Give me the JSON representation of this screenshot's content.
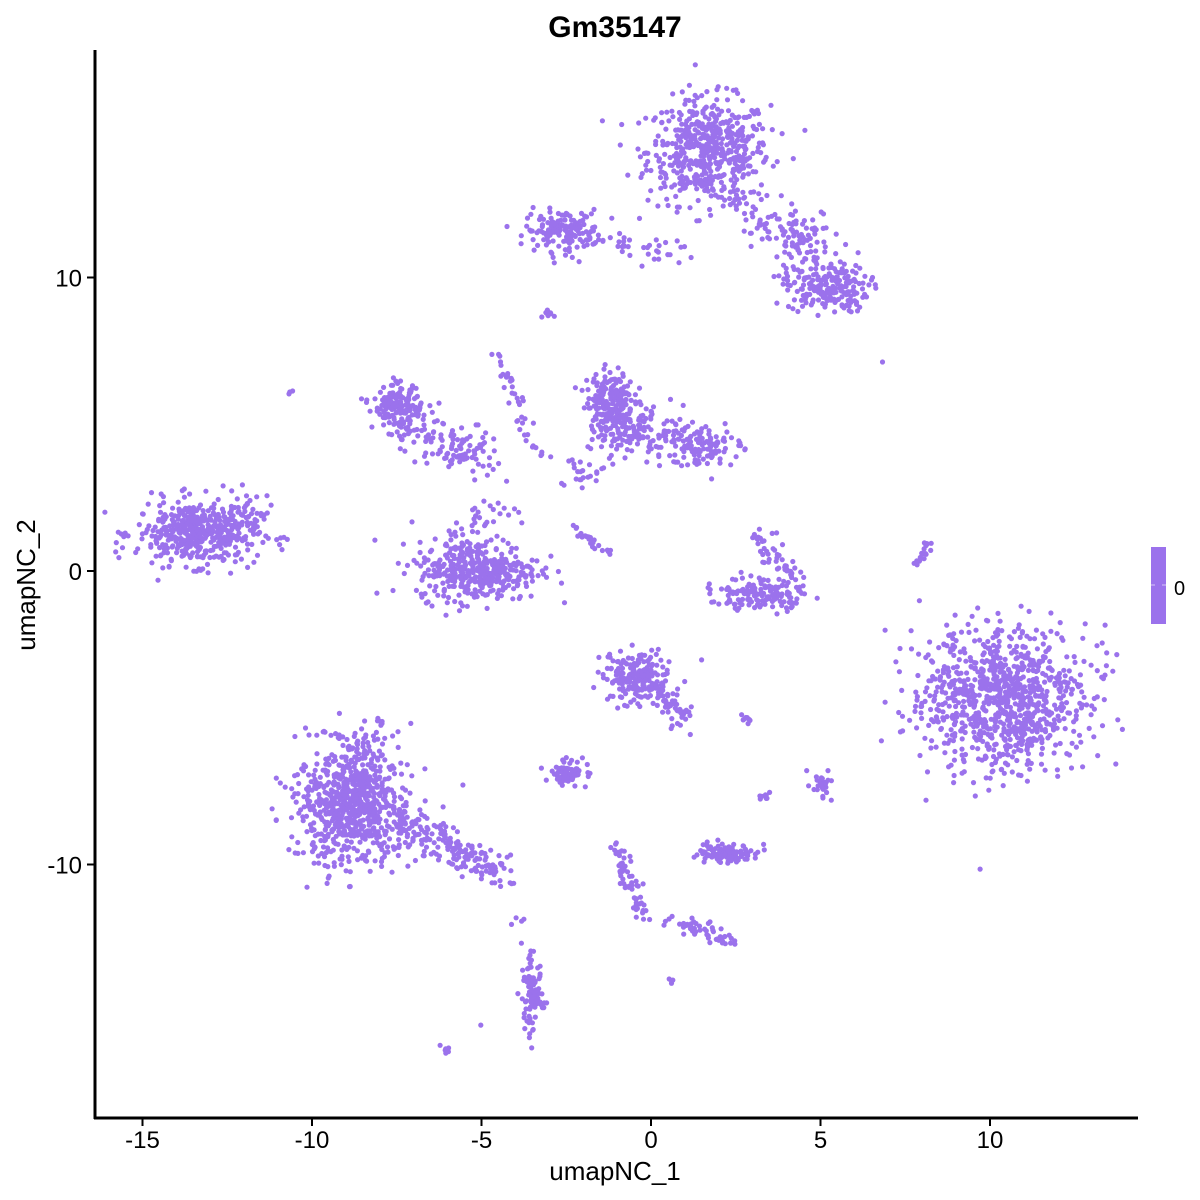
{
  "chart_data": {
    "type": "scatter",
    "title": "Gm35147",
    "xlabel": "umapNC_1",
    "ylabel": "umapNC_2",
    "xlim": [
      -16.3,
      14.5
    ],
    "ylim": [
      -18.3,
      17.9
    ],
    "x_ticks": [
      -15,
      -10,
      -5,
      0,
      5,
      10
    ],
    "y_ticks": [
      -10,
      0,
      10
    ],
    "x_tick_labels": [
      "-15",
      "-10",
      "-5",
      "0",
      "5",
      "10"
    ],
    "y_tick_labels": [
      "-10",
      "0",
      "10"
    ],
    "grid": false,
    "point_color": "#9B72EC",
    "legend": {
      "placement": "right",
      "type": "colorbar",
      "labels": [
        "0"
      ],
      "color": "#9B72EC"
    },
    "clusters": [
      {
        "center": [
          1.7,
          14.3
        ],
        "sd": [
          0.9,
          0.9
        ],
        "n": 550
      },
      {
        "from": [
          2.6,
          12.6
        ],
        "to": [
          5.4,
          9.8
        ],
        "sd": 0.45,
        "n": 120
      },
      {
        "center": [
          5.2,
          9.6
        ],
        "sd": [
          0.6,
          0.4
        ],
        "n": 160
      },
      {
        "center": [
          4.6,
          11.5
        ],
        "sd": [
          0.5,
          0.4
        ],
        "n": 40
      },
      {
        "center": [
          -2.6,
          11.6
        ],
        "sd": [
          0.55,
          0.35
        ],
        "n": 150
      },
      {
        "from": [
          -2.0,
          11.3
        ],
        "to": [
          0.9,
          10.8
        ],
        "sd": 0.2,
        "n": 40
      },
      {
        "center": [
          -13.4,
          1.3
        ],
        "sd": [
          0.9,
          0.55
        ],
        "n": 450
      },
      {
        "from": [
          -12.5,
          0.5
        ],
        "to": [
          -11.6,
          2.8
        ],
        "sd": 0.3,
        "n": 40
      },
      {
        "center": [
          -5.1,
          0.0
        ],
        "sd": [
          0.9,
          0.5
        ],
        "n": 380
      },
      {
        "from": [
          -6.2,
          1.0
        ],
        "to": [
          -4.0,
          2.0
        ],
        "sd": 0.4,
        "n": 50
      },
      {
        "center": [
          -7.5,
          5.6
        ],
        "sd": [
          0.35,
          0.35
        ],
        "n": 150
      },
      {
        "from": [
          -7.3,
          5.0
        ],
        "to": [
          -5.0,
          3.8
        ],
        "sd": 0.45,
        "n": 130
      },
      {
        "from": [
          -4.6,
          7.5
        ],
        "to": [
          -3.3,
          3.8
        ],
        "sd": 0.12,
        "n": 40
      },
      {
        "center": [
          -1.2,
          5.8
        ],
        "sd": [
          0.35,
          0.5
        ],
        "n": 200
      },
      {
        "from": [
          -1.0,
          5.0
        ],
        "to": [
          2.3,
          4.1
        ],
        "sd": 0.4,
        "n": 220
      },
      {
        "from": [
          -2.2,
          3.0
        ],
        "to": [
          -0.8,
          5.0
        ],
        "sd": 0.3,
        "n": 50
      },
      {
        "from": [
          -2.3,
          1.5
        ],
        "to": [
          -1.2,
          0.6
        ],
        "sd": 0.08,
        "n": 25
      },
      {
        "center": [
          3.2,
          -0.8
        ],
        "sd": [
          0.7,
          0.25
        ],
        "n": 150
      },
      {
        "from": [
          3.0,
          1.3
        ],
        "to": [
          4.2,
          -0.3
        ],
        "sd": 0.2,
        "n": 50
      },
      {
        "center": [
          10.4,
          -4.4
        ],
        "sd": [
          1.2,
          1.2
        ],
        "n": 950
      },
      {
        "center": [
          -8.8,
          -8.1
        ],
        "sd": [
          0.85,
          1.0
        ],
        "n": 650
      },
      {
        "from": [
          -8.8,
          -5.5
        ],
        "to": [
          -8.5,
          -8.0
        ],
        "sd": 0.5,
        "n": 120
      },
      {
        "from": [
          -7.5,
          -8.5
        ],
        "to": [
          -4.2,
          -10.4
        ],
        "sd": 0.3,
        "n": 180
      },
      {
        "center": [
          -0.4,
          -3.6
        ],
        "sd": [
          0.5,
          0.45
        ],
        "n": 200
      },
      {
        "from": [
          0.2,
          -3.8
        ],
        "to": [
          1.1,
          -5.4
        ],
        "sd": 0.2,
        "n": 50
      },
      {
        "center": [
          -2.4,
          -6.9
        ],
        "sd": [
          0.3,
          0.2
        ],
        "n": 80
      },
      {
        "center": [
          2.3,
          -9.6
        ],
        "sd": [
          0.45,
          0.15
        ],
        "n": 100
      },
      {
        "from": [
          -1.0,
          -9.3
        ],
        "to": [
          -0.3,
          -11.8
        ],
        "sd": 0.12,
        "n": 60
      },
      {
        "from": [
          0.6,
          -11.9
        ],
        "to": [
          2.5,
          -12.6
        ],
        "sd": 0.15,
        "n": 50
      },
      {
        "center": [
          -3.5,
          -14.5
        ],
        "sd": [
          0.15,
          0.6
        ],
        "n": 90
      },
      {
        "from": [
          8.2,
          0.9
        ],
        "to": [
          7.8,
          0.2
        ],
        "sd": 0.08,
        "n": 20
      },
      {
        "center": [
          5.0,
          -7.3
        ],
        "sd": [
          0.15,
          0.2
        ],
        "n": 30
      },
      {
        "center": [
          2.8,
          -5.1
        ],
        "sd": [
          0.1,
          0.08
        ],
        "n": 8
      },
      {
        "center": [
          3.3,
          -7.7
        ],
        "sd": [
          0.1,
          0.1
        ],
        "n": 8
      },
      {
        "center": [
          0.6,
          -14.0
        ],
        "sd": [
          0.05,
          0.05
        ],
        "n": 4
      },
      {
        "center": [
          -6.1,
          -16.3
        ],
        "sd": [
          0.1,
          0.05
        ],
        "n": 6
      },
      {
        "center": [
          -3.0,
          8.8
        ],
        "sd": [
          0.1,
          0.08
        ],
        "n": 8
      },
      {
        "center": [
          -10.6,
          6.1
        ],
        "sd": [
          0.05,
          0.05
        ],
        "n": 3
      },
      {
        "center": [
          6.8,
          7.1
        ],
        "sd": [
          0.02,
          0.02
        ],
        "n": 1
      },
      {
        "center": [
          -5.0,
          -15.5
        ],
        "sd": [
          0.02,
          0.02
        ],
        "n": 1
      },
      {
        "center": [
          -3.9,
          -12.2
        ],
        "sd": [
          0.1,
          0.4
        ],
        "n": 5
      }
    ]
  }
}
